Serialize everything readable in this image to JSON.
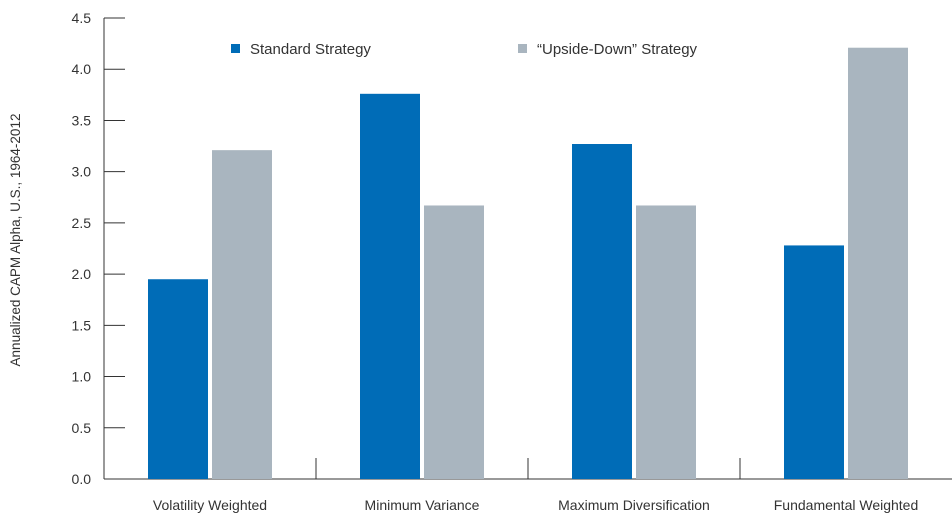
{
  "chart_data": {
    "type": "bar",
    "title": "",
    "xlabel": "",
    "ylabel": "Annualized CAPM Alpha, U.S., 1964-2012",
    "ylim": [
      0,
      4.5
    ],
    "yticks": [
      "0.0",
      "0.5",
      "1.0",
      "1.5",
      "2.0",
      "2.5",
      "3.0",
      "3.5",
      "4.0",
      "4.5"
    ],
    "grid": false,
    "legend_position": "top",
    "categories": [
      "Volatility Weighted",
      "Minimum Variance",
      "Maximum Diversification",
      "Fundamental Weighted"
    ],
    "series": [
      {
        "name": "Standard Strategy",
        "color": "#006cb7",
        "values": [
          1.95,
          3.76,
          3.27,
          2.28
        ]
      },
      {
        "name": "“Upside-Down” Strategy",
        "color": "#a9b5bf",
        "values": [
          3.21,
          2.67,
          2.67,
          4.21
        ]
      }
    ]
  }
}
